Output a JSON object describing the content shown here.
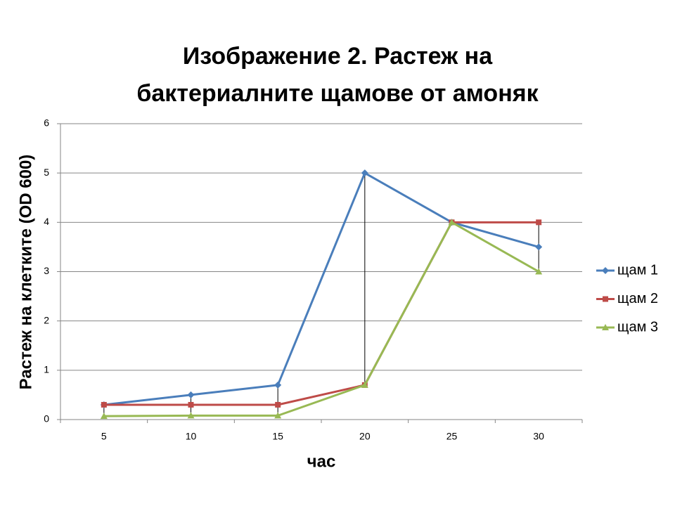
{
  "chart_data": {
    "type": "line",
    "title": [
      "Изображение 2.  Растеж на",
      "бактериалните щамове от амоняк"
    ],
    "x_label": "час",
    "y_label": "Растеж на клетките (OD 600)",
    "categories": [
      "5",
      "10",
      "15",
      "20",
      "25",
      "30"
    ],
    "series": [
      {
        "name": "щам 1",
        "color": "#4a7ebb",
        "marker": "diamond",
        "values": [
          0.3,
          0.5,
          0.7,
          5,
          4,
          3.5
        ]
      },
      {
        "name": "щам 2",
        "color": "#be4b48",
        "marker": "square",
        "values": [
          0.3,
          0.3,
          0.3,
          0.7,
          4,
          4
        ]
      },
      {
        "name": "щам 3",
        "color": "#98b954",
        "marker": "triangle",
        "values": [
          0.07,
          0.08,
          0.08,
          0.7,
          4,
          3
        ]
      }
    ],
    "ylim": [
      0,
      6
    ],
    "yticks": [
      0,
      1,
      2,
      3,
      4,
      5,
      6
    ],
    "grid": true,
    "high_low_lines": true,
    "legend": "right"
  }
}
